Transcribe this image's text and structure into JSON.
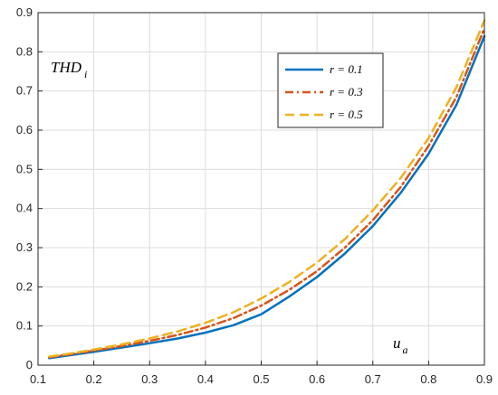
{
  "chart_data": {
    "type": "line",
    "x_ticks": [
      "0.1",
      "0.2",
      "0.3",
      "0.4",
      "0.5",
      "0.6",
      "0.7",
      "0.8",
      "0.9"
    ],
    "y_ticks": [
      "0",
      "0.1",
      "0.2",
      "0.3",
      "0.4",
      "0.5",
      "0.6",
      "0.7",
      "0.8",
      "0.9"
    ],
    "xlim": [
      0.1,
      0.9
    ],
    "ylim": [
      0,
      0.9
    ],
    "grid": true,
    "legend_position": "top-right",
    "ylabel": {
      "main": "THD",
      "sub": "i"
    },
    "xlabel": {
      "main": "u",
      "sub": "a"
    },
    "series": [
      {
        "name": "r = 0.1",
        "color": "#0072BD",
        "style": "solid",
        "x": [
          0.12,
          0.15,
          0.2,
          0.25,
          0.3,
          0.35,
          0.4,
          0.45,
          0.5,
          0.55,
          0.6,
          0.65,
          0.7,
          0.75,
          0.8,
          0.85,
          0.9
        ],
        "y": [
          0.018,
          0.024,
          0.034,
          0.045,
          0.056,
          0.068,
          0.083,
          0.102,
          0.13,
          0.175,
          0.225,
          0.285,
          0.355,
          0.44,
          0.54,
          0.665,
          0.84
        ]
      },
      {
        "name": "r = 0.3",
        "color": "#D95319",
        "style": "dashdot",
        "x": [
          0.12,
          0.15,
          0.2,
          0.25,
          0.3,
          0.35,
          0.4,
          0.45,
          0.5,
          0.55,
          0.6,
          0.65,
          0.7,
          0.75,
          0.8,
          0.85,
          0.9
        ],
        "y": [
          0.02,
          0.026,
          0.037,
          0.049,
          0.062,
          0.077,
          0.096,
          0.12,
          0.152,
          0.192,
          0.24,
          0.3,
          0.37,
          0.455,
          0.56,
          0.685,
          0.86
        ]
      },
      {
        "name": "r = 0.5",
        "color": "#EDB120",
        "style": "dashed",
        "x": [
          0.12,
          0.15,
          0.2,
          0.25,
          0.3,
          0.35,
          0.4,
          0.45,
          0.5,
          0.55,
          0.6,
          0.65,
          0.7,
          0.75,
          0.8,
          0.85,
          0.9
        ],
        "y": [
          0.022,
          0.028,
          0.04,
          0.053,
          0.068,
          0.086,
          0.108,
          0.135,
          0.17,
          0.212,
          0.262,
          0.322,
          0.395,
          0.478,
          0.58,
          0.71,
          0.88
        ]
      }
    ]
  }
}
